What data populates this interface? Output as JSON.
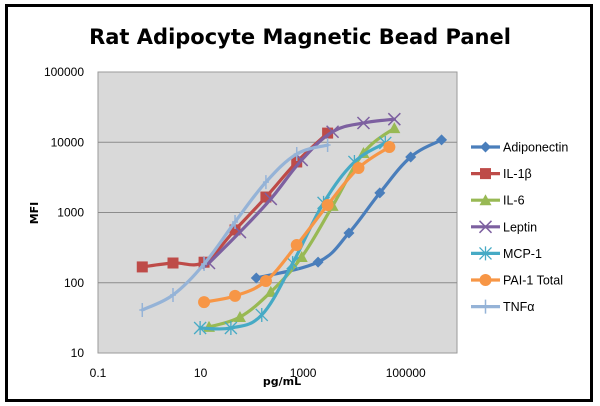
{
  "chart_data": {
    "type": "line",
    "title": "Rat Adipocyte Magnetic Bead Panel",
    "xlabel": "pg/mL",
    "ylabel": "MFI",
    "xscale": "log",
    "yscale": "log",
    "xlim": [
      0.1,
      1000000
    ],
    "ylim": [
      10,
      100000
    ],
    "xticks": [
      "0.1",
      "10",
      "1000",
      "100000"
    ],
    "yticks": [
      "10",
      "100",
      "1000",
      "10000",
      "100000"
    ],
    "grid": "horizontal",
    "legend_position": "right",
    "series": [
      {
        "name": "Adiponectin",
        "color": "#4a7ebb",
        "marker": "diamond",
        "x": [
          122,
          1953,
          7813,
          31250,
          125000,
          500000
        ],
        "y": [
          117,
          197,
          511,
          1900,
          6170,
          10800
        ]
      },
      {
        "name": "IL-1β",
        "color": "#be4b48",
        "marker": "square",
        "x": [
          0.73,
          2.9,
          11.7,
          47,
          188,
          750,
          3000
        ],
        "y": [
          168,
          191,
          196,
          565,
          1660,
          5240,
          13500
        ]
      },
      {
        "name": "IL-6",
        "color": "#98b954",
        "marker": "triangle",
        "x": [
          14.6,
          58.6,
          234,
          938,
          3750,
          15000,
          60000
        ],
        "y": [
          23.5,
          32.5,
          74,
          233,
          1240,
          7040,
          15900
        ]
      },
      {
        "name": "Leptin",
        "color": "#7d60a0",
        "marker": "x",
        "x": [
          14.6,
          58.6,
          234,
          938,
          3750,
          15000,
          60000
        ],
        "y": [
          191,
          527,
          1560,
          5600,
          14100,
          18800,
          21300
        ]
      },
      {
        "name": "MCP-1",
        "color": "#46aac5",
        "marker": "star",
        "x": [
          9.8,
          39,
          156,
          625,
          2500,
          10000,
          40000
        ],
        "y": [
          22.7,
          22.7,
          34.8,
          190,
          1370,
          5240,
          9770
        ]
      },
      {
        "name": "PAI-1 Total",
        "color": "#f79646",
        "marker": "circle",
        "x": [
          11.7,
          47,
          188,
          750,
          3000,
          12000,
          48000
        ],
        "y": [
          53,
          65,
          106,
          344,
          1280,
          4300,
          8560
        ]
      },
      {
        "name": "TNFα",
        "color": "#95b3d7",
        "marker": "plus",
        "x": [
          0.73,
          2.9,
          11.7,
          47,
          188,
          750,
          3000
        ],
        "y": [
          41,
          67,
          185,
          733,
          2710,
          6800,
          9120
        ]
      }
    ]
  }
}
